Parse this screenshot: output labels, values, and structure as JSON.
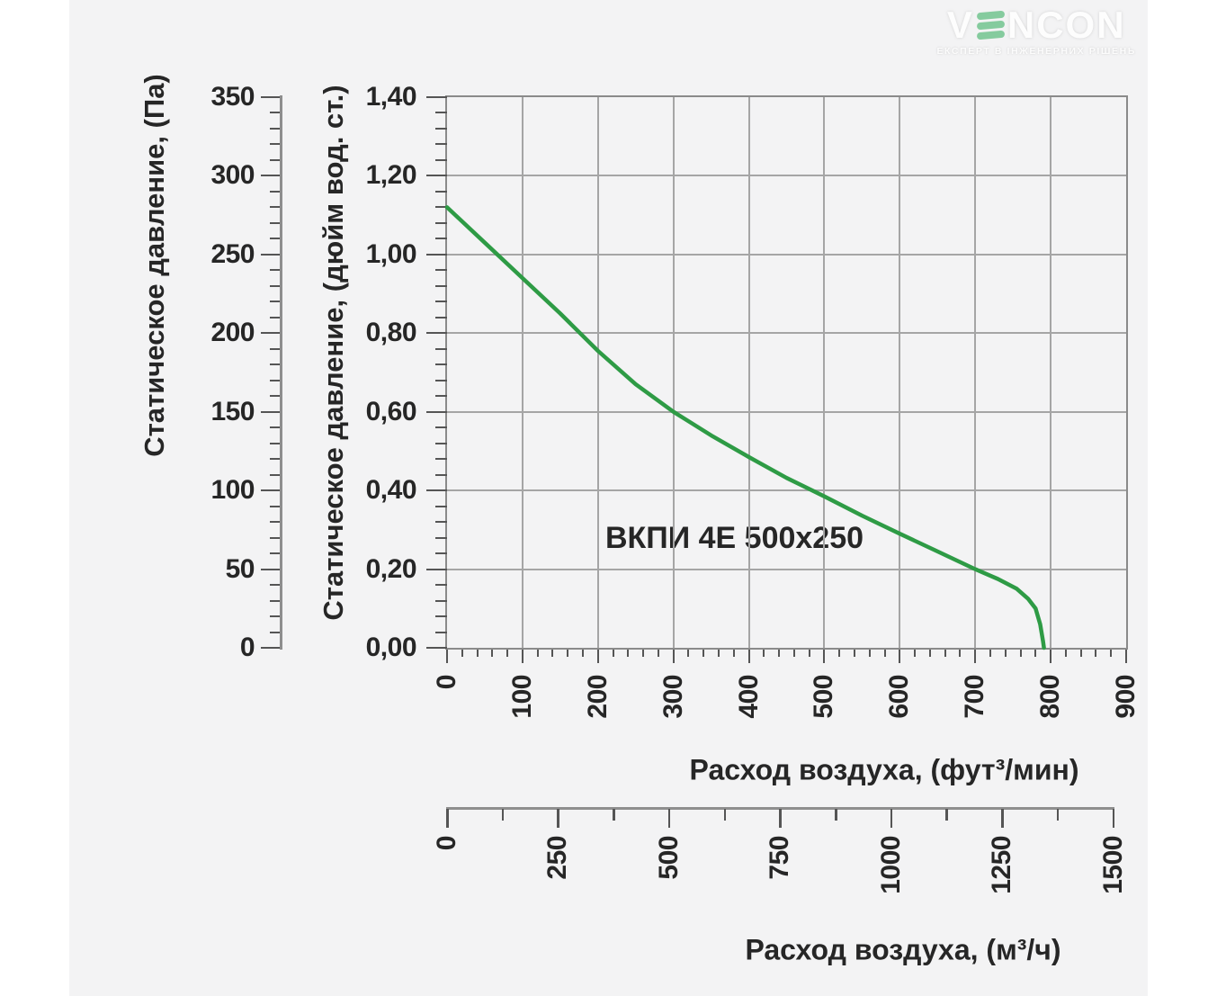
{
  "logo": {
    "brand_v": "V",
    "brand_rest": "NCON",
    "tagline": "ЕКСПЕРТ В ІНЖЕНЕРНИХ РІШЕНЬ",
    "accent_green": "#85cb9e"
  },
  "chart_data": {
    "type": "line",
    "annotation": "ВКПИ 4Е 500x250",
    "grid": true,
    "series": [
      {
        "name": "ВКПИ 4Е 500x250",
        "color": "#2e9b45",
        "points_cfm_inwc": [
          [
            0,
            1.12
          ],
          [
            50,
            1.03
          ],
          [
            100,
            0.94
          ],
          [
            150,
            0.85
          ],
          [
            200,
            0.755
          ],
          [
            250,
            0.67
          ],
          [
            300,
            0.6
          ],
          [
            350,
            0.54
          ],
          [
            400,
            0.485
          ],
          [
            450,
            0.432
          ],
          [
            500,
            0.385
          ],
          [
            550,
            0.336
          ],
          [
            600,
            0.29
          ],
          [
            650,
            0.245
          ],
          [
            700,
            0.2
          ],
          [
            730,
            0.175
          ],
          [
            755,
            0.15
          ],
          [
            770,
            0.125
          ],
          [
            780,
            0.1
          ],
          [
            786,
            0.06
          ],
          [
            790,
            0.015
          ],
          [
            791,
            0.0
          ]
        ]
      }
    ],
    "y_pa": {
      "label": "Статическое давление, (Па)",
      "min": 0,
      "max": 350,
      "major": 50,
      "minor": 10,
      "tick_labels": [
        "0",
        "50",
        "100",
        "150",
        "200",
        "250",
        "300",
        "350"
      ]
    },
    "y_inwc": {
      "label": "Статическое давление, (дюйм вод. ст.)",
      "min": 0,
      "max": 1.4,
      "major": 0.2,
      "minor": 0.04,
      "tick_labels": [
        "0,00",
        "0,20",
        "0,40",
        "0,60",
        "0,80",
        "1,00",
        "1,20",
        "1,40"
      ]
    },
    "x_cfm": {
      "label": "Расход воздуха, (фут³/мин)",
      "min": 0,
      "max": 900,
      "major": 100,
      "minor": 20,
      "tick_labels": [
        "0",
        "100",
        "200",
        "300",
        "400",
        "500",
        "600",
        "700",
        "800",
        "900"
      ]
    },
    "x_m3h": {
      "label": "Расход воздуха, (м³/ч)",
      "min": 0,
      "max": 1500,
      "major": 250,
      "minor": 125,
      "tick_labels": [
        "0",
        "250",
        "500",
        "750",
        "1000",
        "1250",
        "1500"
      ]
    }
  },
  "colors": {
    "background": "#f3f3f4",
    "grid": "#a5a5a5",
    "axis": "#8e8e8e",
    "tick": "#555555",
    "text": "#262626",
    "curve": "#2e9b45"
  }
}
